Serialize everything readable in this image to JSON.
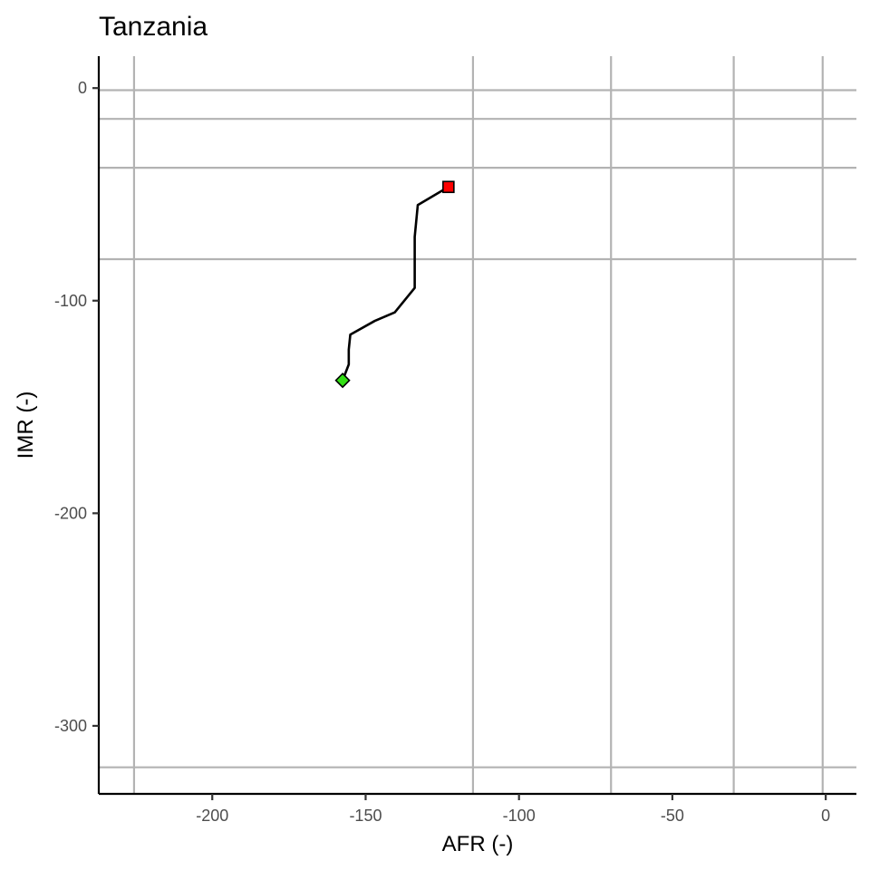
{
  "chart_data": {
    "type": "line",
    "title": "Tanzania",
    "xlabel": "AFR (-)",
    "ylabel": "IMR (-)",
    "xlim": [
      -237,
      10
    ],
    "ylim": [
      -332,
      15
    ],
    "x_ticks": [
      -200,
      -150,
      -100,
      -50,
      0
    ],
    "x_tick_labels": [
      "-200",
      "-150",
      "-100",
      "-50",
      "0"
    ],
    "y_ticks": [
      0,
      -100,
      -200,
      -300
    ],
    "y_tick_labels": [
      "0",
      "-100",
      "-200",
      "-300"
    ],
    "grid": {
      "vertical_x": [
        -225.5,
        -115,
        -70,
        -30,
        -1
      ],
      "horizontal_y": [
        -1,
        -14.5,
        -37.5,
        -80.5,
        -319.5
      ],
      "color": "#b3b3b3"
    },
    "series": [
      {
        "points": [
          {
            "x": -157.5,
            "y": -137.5
          },
          {
            "x": -155.5,
            "y": -130
          },
          {
            "x": -155.5,
            "y": -123
          },
          {
            "x": -155,
            "y": -116
          },
          {
            "x": -147,
            "y": -109.5
          },
          {
            "x": -140.5,
            "y": -105.5
          },
          {
            "x": -134,
            "y": -94
          },
          {
            "x": -134,
            "y": -70
          },
          {
            "x": -133,
            "y": -55
          },
          {
            "x": -123,
            "y": -46.5
          }
        ],
        "color": "#000000"
      }
    ],
    "markers": [
      {
        "role": "start",
        "shape": "diamond",
        "x": -157.5,
        "y": -137.5,
        "color": "#33e014"
      },
      {
        "role": "end",
        "shape": "square",
        "x": -123,
        "y": -46.5,
        "color": "#ff0000"
      }
    ]
  }
}
